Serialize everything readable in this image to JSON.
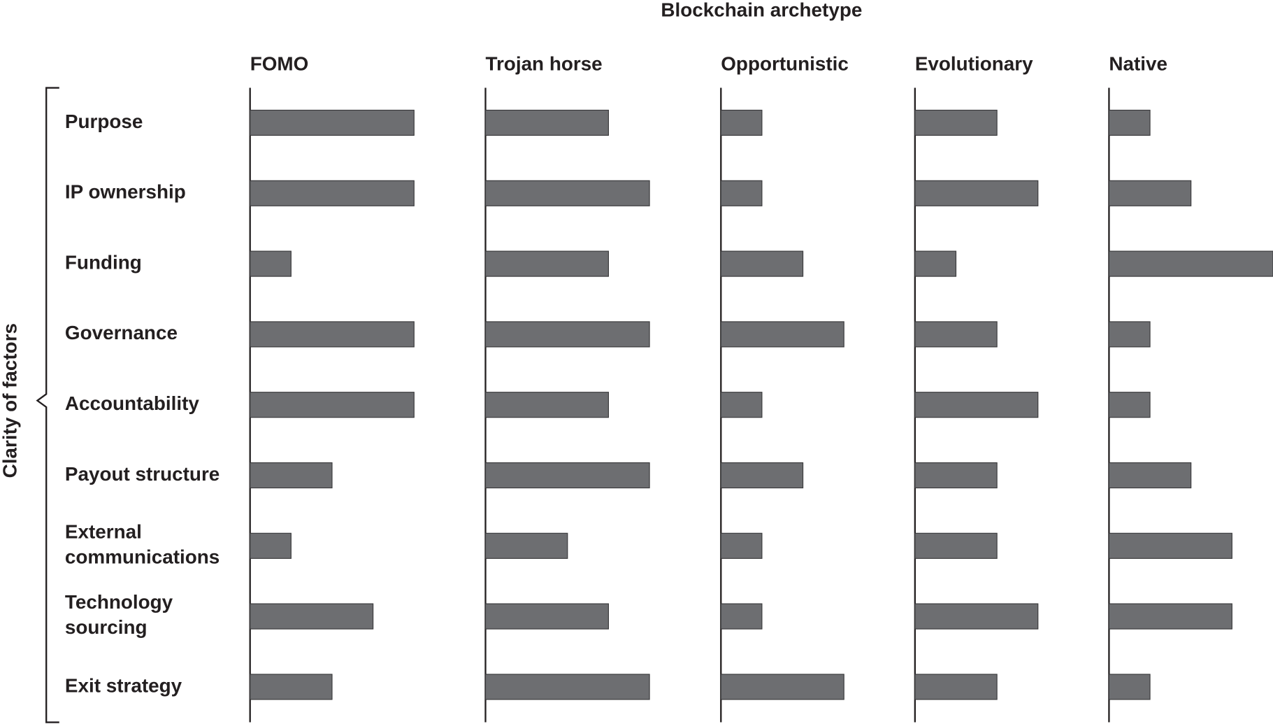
{
  "chart_data": {
    "type": "bar",
    "orientation": "horizontal",
    "title": "Blockchain archetype",
    "y_label": "Clarity of factors",
    "categories": [
      "Purpose",
      "IP ownership",
      "Funding",
      "Governance",
      "Accountability",
      "Payout structure",
      "External communications",
      "Technology sourcing",
      "Exit strategy"
    ],
    "xlim": [
      0,
      4
    ],
    "series": [
      {
        "name": "FOMO",
        "color": "#6d6e71",
        "values": [
          4,
          4,
          1,
          4,
          4,
          2,
          1,
          3,
          2
        ]
      },
      {
        "name": "Trojan horse",
        "color": "#6d6e71",
        "values": [
          3,
          4,
          3,
          4,
          3,
          4,
          2,
          3,
          4
        ]
      },
      {
        "name": "Opportunistic",
        "color": "#6d6e71",
        "values": [
          1,
          1,
          2,
          3,
          1,
          2,
          1,
          1,
          3
        ]
      },
      {
        "name": "Evolutionary",
        "color": "#6d6e71",
        "values": [
          2,
          3,
          1,
          2,
          3,
          2,
          2,
          3,
          2
        ]
      },
      {
        "name": "Native",
        "color": "#6d6e71",
        "values": [
          1,
          2,
          4,
          1,
          1,
          2,
          3,
          3,
          1
        ]
      }
    ]
  }
}
